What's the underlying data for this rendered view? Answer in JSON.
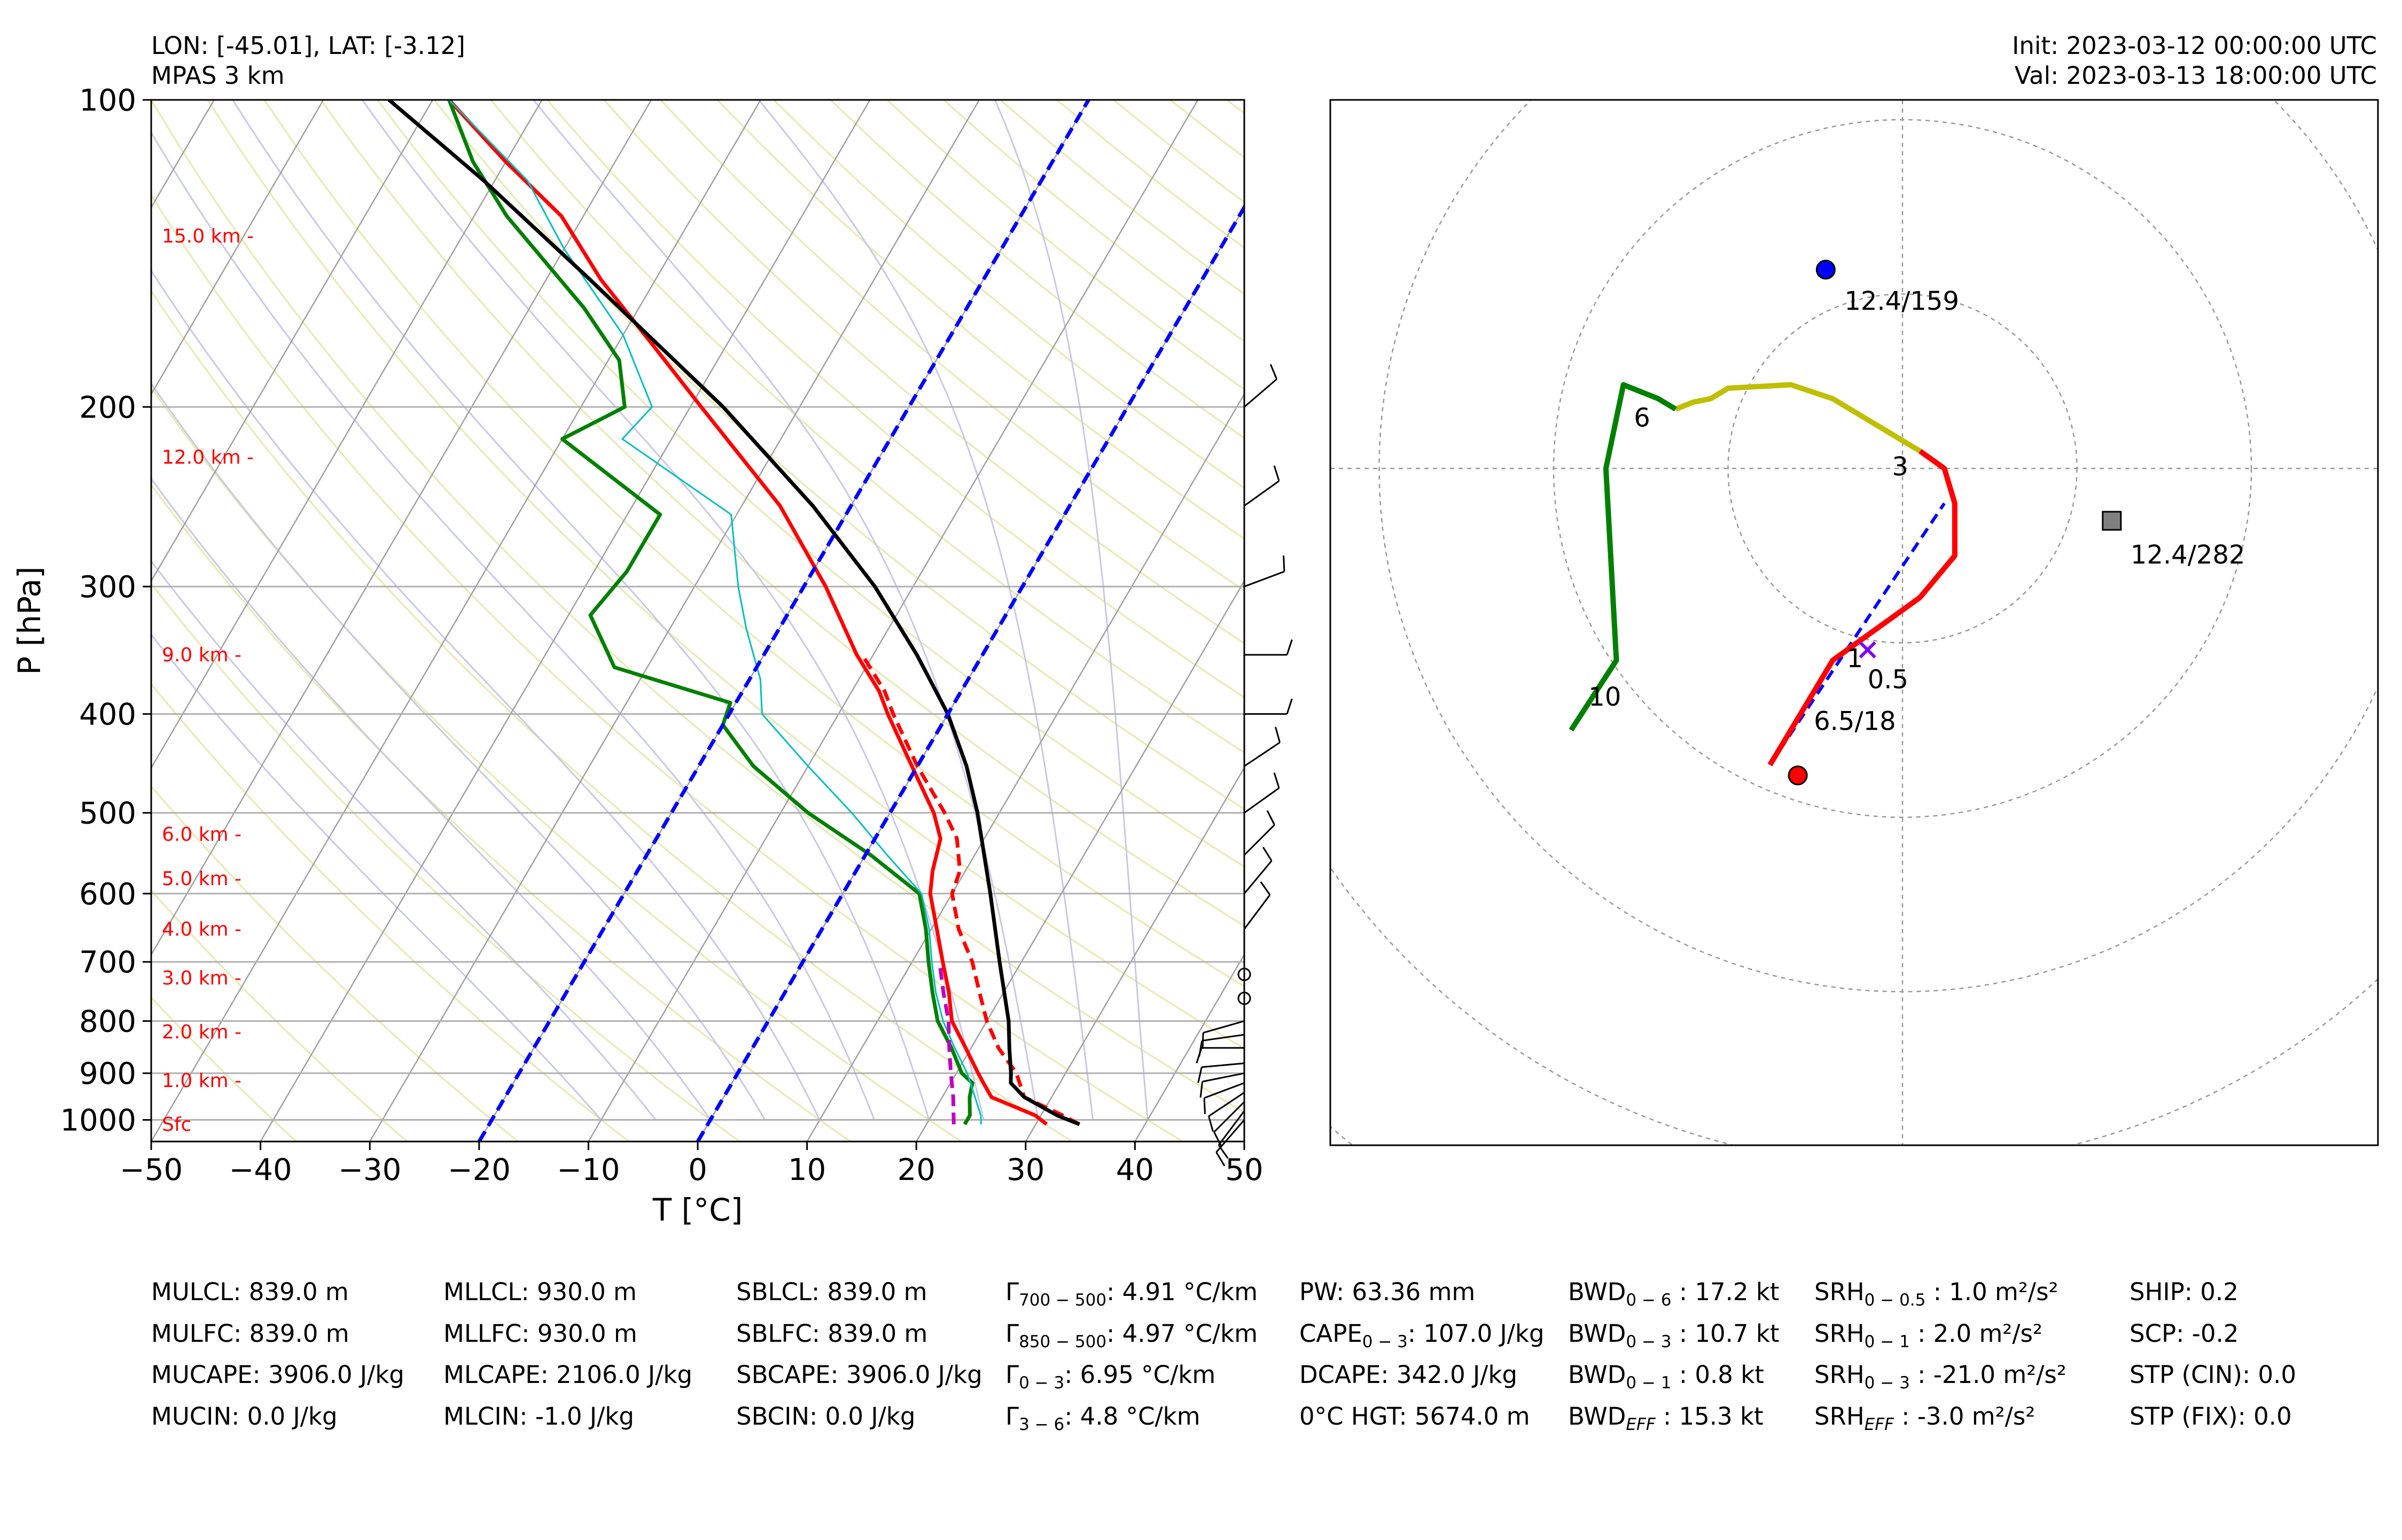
{
  "header": {
    "location": "LON: [-45.01], LAT: [-3.12]",
    "model": "MPAS 3 km",
    "init": "Init: 2023-03-12 00:00:00 UTC",
    "valid": "Val: 2023-03-13 18:00:00 UTC"
  },
  "chart_data": [
    {
      "type": "line",
      "kind": "skew-t log-p diagram",
      "xlabel": "T [°C]",
      "ylabel": "P [hPa]",
      "xlim": [
        -50,
        50
      ],
      "ylim": [
        1050,
        100
      ],
      "y_scale": "log",
      "x_ticks": [
        -50,
        -40,
        -30,
        -20,
        -10,
        0,
        10,
        20,
        30,
        40,
        50
      ],
      "y_ticks": [
        100,
        200,
        300,
        400,
        500,
        600,
        700,
        800,
        900,
        1000
      ],
      "grid": true,
      "height_labels": [
        {
          "text": "15.0 km -",
          "p": 136
        },
        {
          "text": "12.0 km -",
          "p": 224
        },
        {
          "text": "9.0 km -",
          "p": 350
        },
        {
          "text": "6.0 km -",
          "p": 525
        },
        {
          "text": "5.0 km -",
          "p": 580
        },
        {
          "text": "4.0 km -",
          "p": 650
        },
        {
          "text": "3.0 km -",
          "p": 726
        },
        {
          "text": "2.0 km -",
          "p": 820
        },
        {
          "text": "1.0 km -",
          "p": 915
        },
        {
          "text": "Sfc",
          "p": 1010
        }
      ],
      "series": [
        {
          "role": "temperature",
          "color": "#ff0000",
          "style": "solid",
          "points": [
            [
              1010,
              31.0
            ],
            [
              990,
              29.5
            ],
            [
              950,
              24.5
            ],
            [
              920,
              23.0
            ],
            [
              900,
              22.0
            ],
            [
              850,
              19.5
            ],
            [
              800,
              16.8
            ],
            [
              750,
              15.0
            ],
            [
              700,
              12.8
            ],
            [
              650,
              10.5
            ],
            [
              600,
              8.0
            ],
            [
              570,
              7.0
            ],
            [
              530,
              6.0
            ],
            [
              500,
              4.0
            ],
            [
              450,
              -0.5
            ],
            [
              400,
              -5.5
            ],
            [
              380,
              -7.5
            ],
            [
              350,
              -11.5
            ],
            [
              300,
              -18.0
            ],
            [
              250,
              -26.5
            ],
            [
              200,
              -39.0
            ],
            [
              170,
              -48.0
            ],
            [
              150,
              -55.0
            ],
            [
              130,
              -62.0
            ],
            [
              115,
              -70.0
            ],
            [
              100,
              -78.5
            ]
          ]
        },
        {
          "role": "dewpoint",
          "color": "#008000",
          "style": "solid",
          "points": [
            [
              1010,
              23.5
            ],
            [
              990,
              23.5
            ],
            [
              950,
              22.5
            ],
            [
              920,
              22.0
            ],
            [
              900,
              20.5
            ],
            [
              850,
              18.2
            ],
            [
              800,
              15.5
            ],
            [
              750,
              13.5
            ],
            [
              700,
              11.5
            ],
            [
              650,
              9.5
            ],
            [
              600,
              7.0
            ],
            [
              550,
              0.5
            ],
            [
              500,
              -7.5
            ],
            [
              450,
              -15.0
            ],
            [
              410,
              -20.0
            ],
            [
              390,
              -20.5
            ],
            [
              360,
              -33.0
            ],
            [
              320,
              -38.0
            ],
            [
              290,
              -37.0
            ],
            [
              255,
              -37.0
            ],
            [
              215,
              -50.0
            ],
            [
              200,
              -46.0
            ],
            [
              180,
              -49.0
            ],
            [
              160,
              -55.0
            ],
            [
              130,
              -67.0
            ],
            [
              115,
              -73.0
            ],
            [
              100,
              -78.5
            ]
          ]
        },
        {
          "role": "wet-bulb",
          "color": "#00bfbf",
          "style": "solid",
          "points": [
            [
              1010,
              25.0
            ],
            [
              990,
              24.5
            ],
            [
              950,
              23.0
            ],
            [
              900,
              21.0
            ],
            [
              850,
              18.5
            ],
            [
              800,
              16.0
            ],
            [
              750,
              13.8
            ],
            [
              700,
              11.8
            ],
            [
              650,
              9.8
            ],
            [
              600,
              7.2
            ],
            [
              550,
              2.0
            ],
            [
              500,
              -3.5
            ],
            [
              450,
              -10.0
            ],
            [
              400,
              -17.0
            ],
            [
              370,
              -19.0
            ],
            [
              330,
              -23.0
            ],
            [
              300,
              -26.0
            ],
            [
              255,
              -30.5
            ],
            [
              215,
              -44.5
            ],
            [
              200,
              -43.5
            ],
            [
              170,
              -50.0
            ],
            [
              140,
              -60.0
            ],
            [
              120,
              -67.0
            ],
            [
              100,
              -78.5
            ]
          ]
        },
        {
          "role": "virtual-temperature",
          "color": "#ff0000",
          "style": "dashed",
          "points": [
            [
              1010,
              34.0
            ],
            [
              990,
              32.0
            ],
            [
              950,
              27.5
            ],
            [
              900,
              25.5
            ],
            [
              850,
              22.5
            ],
            [
              800,
              20.0
            ],
            [
              750,
              17.8
            ],
            [
              700,
              15.5
            ],
            [
              650,
              12.5
            ],
            [
              600,
              10.0
            ],
            [
              570,
              9.5
            ],
            [
              530,
              7.5
            ],
            [
              500,
              5.0
            ],
            [
              450,
              0.0
            ],
            [
              400,
              -5.0
            ],
            [
              380,
              -7.0
            ],
            [
              350,
              -11.0
            ]
          ]
        },
        {
          "role": "parcel-path",
          "color": "#000000",
          "style": "solid",
          "points": [
            [
              1010,
              34.0
            ],
            [
              990,
              31.5
            ],
            [
              950,
              27.5
            ],
            [
              920,
              25.5
            ],
            [
              900,
              25.0
            ],
            [
              850,
              23.5
            ],
            [
              800,
              22.0
            ],
            [
              700,
              18.0
            ],
            [
              600,
              13.5
            ],
            [
              500,
              8.0
            ],
            [
              450,
              4.5
            ],
            [
              400,
              0.0
            ],
            [
              350,
              -6.0
            ],
            [
              300,
              -13.5
            ],
            [
              250,
              -23.5
            ],
            [
              200,
              -37.0
            ],
            [
              150,
              -56.0
            ],
            [
              120,
              -71.0
            ],
            [
              100,
              -84.0
            ]
          ]
        },
        {
          "role": "downdraft-parcel",
          "color": "#c000c0",
          "style": "dashed",
          "points": [
            [
              1010,
              22.5
            ],
            [
              950,
              21.0
            ],
            [
              900,
              19.5
            ],
            [
              850,
              18.0
            ],
            [
              800,
              16.5
            ],
            [
              750,
              14.5
            ],
            [
              700,
              12.5
            ]
          ]
        },
        {
          "role": "isotherm-0C",
          "color": "#0000ff",
          "style": "dashed",
          "points": [
            [
              1050,
              0.0
            ],
            [
              100,
              0.0
            ]
          ]
        },
        {
          "role": "isotherm-minus20C",
          "color": "#0000ff",
          "style": "dashed",
          "points": [
            [
              1050,
              -20.0
            ],
            [
              100,
              -20.0
            ]
          ]
        }
      ],
      "wind_barbs_kt": [
        {
          "p": 1000,
          "u": 1.3,
          "v": 1.5
        },
        {
          "p": 980,
          "u": 1.5,
          "v": 2.0
        },
        {
          "p": 960,
          "u": 2.0,
          "v": 2.0
        },
        {
          "p": 940,
          "u": 3.0,
          "v": 2.0
        },
        {
          "p": 920,
          "u": 4.0,
          "v": 1.5
        },
        {
          "p": 900,
          "u": 5.0,
          "v": 1.0
        },
        {
          "p": 880,
          "u": 5.5,
          "v": 0.5
        },
        {
          "p": 850,
          "u": 6.0,
          "v": 0.0
        },
        {
          "p": 825,
          "u": 7.0,
          "v": 1.0
        },
        {
          "p": 800,
          "u": 7.0,
          "v": 2.0
        },
        {
          "p": 760,
          "u": 0.0,
          "v": 0.0
        },
        {
          "p": 720,
          "u": 0.0,
          "v": 0.0
        },
        {
          "p": 650,
          "u": -3.0,
          "v": -4.0
        },
        {
          "p": 600,
          "u": -5.0,
          "v": -6.0
        },
        {
          "p": 550,
          "u": -5.0,
          "v": -5.0
        },
        {
          "p": 500,
          "u": -7.0,
          "v": -5.0
        },
        {
          "p": 450,
          "u": -6.0,
          "v": -4.0
        },
        {
          "p": 400,
          "u": -8.0,
          "v": 0.0
        },
        {
          "p": 350,
          "u": -8.0,
          "v": 0.0
        },
        {
          "p": 300,
          "u": -8.0,
          "v": -3.0
        },
        {
          "p": 250,
          "u": -7.0,
          "v": -5.0
        },
        {
          "p": 200,
          "u": -7.0,
          "v": -6.0
        }
      ]
    },
    {
      "type": "line",
      "kind": "hodograph",
      "range_kt": [
        -30,
        30
      ],
      "ring_interval_kt": 5,
      "grid": true,
      "segments": [
        {
          "layer": "0-3 km",
          "color": "#ff0000",
          "points": [
            [
              -3.8,
              -8.5
            ],
            [
              -2.0,
              -5.5
            ],
            [
              0.5,
              -3.7
            ],
            [
              1.5,
              -2.5
            ],
            [
              1.5,
              -1.0
            ],
            [
              1.2,
              0.0
            ],
            [
              0.5,
              0.5
            ]
          ]
        },
        {
          "layer": "3-6 km",
          "color": "#bfbf00",
          "points": [
            [
              0.5,
              0.5
            ],
            [
              -2.0,
              2.0
            ],
            [
              -3.2,
              2.4
            ],
            [
              -5.0,
              2.3
            ],
            [
              -5.5,
              2.0
            ],
            [
              -6.0,
              1.9
            ],
            [
              -6.5,
              1.7
            ]
          ]
        },
        {
          "layer": "6-10 km",
          "color": "#008000",
          "points": [
            [
              -6.5,
              1.7
            ],
            [
              -7.0,
              2.0
            ],
            [
              -8.0,
              2.4
            ],
            [
              -8.5,
              0.0
            ],
            [
              -8.2,
              -5.5
            ],
            [
              -9.5,
              -7.5
            ]
          ]
        }
      ],
      "labels": [
        {
          "text": "6",
          "u": -7.7,
          "v": 1.2
        },
        {
          "text": "3",
          "u": -0.3,
          "v": -0.2
        },
        {
          "text": "0.5",
          "u": -1.0,
          "v": -6.3
        },
        {
          "text": "1",
          "u": -1.6,
          "v": -5.7
        },
        {
          "text": "10",
          "u": -9.0,
          "v": -6.8
        }
      ],
      "markers": [
        {
          "role": "left-mover",
          "shape": "circle",
          "color": "#0000ff",
          "u": -2.2,
          "v": 5.7,
          "label": "12.4/159"
        },
        {
          "role": "right-mover",
          "shape": "square",
          "color": "#808080",
          "u": 6.0,
          "v": -1.5,
          "label": "12.4/282"
        },
        {
          "role": "mean-wind",
          "shape": "circle",
          "color": "#ff0000",
          "u": -3.0,
          "v": -8.8,
          "label": "6.5/18"
        },
        {
          "role": "effective-inflow",
          "shape": "x",
          "color": "#8000ff",
          "u": -1.0,
          "v": -5.2,
          "label": ""
        }
      ],
      "shear_vector": {
        "color": "#0000ff",
        "style": "dashed",
        "from": [
          -3.8,
          -8.5
        ],
        "to": [
          1.2,
          -1.0
        ]
      }
    }
  ],
  "indices": {
    "col1": [
      "MULCL: 839.0 m",
      "MULFC: 839.0 m",
      "MUCAPE: 3906.0 J/kg",
      "MUCIN: 0.0 J/kg"
    ],
    "col2": [
      "MLLCL: 930.0 m",
      "MLLFC: 930.0 m",
      "MLCAPE: 2106.0 J/kg",
      "MLCIN: -1.0 J/kg"
    ],
    "col3": [
      "SBLCL: 839.0 m",
      "SBLFC: 839.0 m",
      "SBCAPE: 3906.0 J/kg",
      "SBCIN: 0.0 J/kg"
    ],
    "col4": [
      {
        "sym": "Γ",
        "sub": "700 − 500",
        "rest": ": 4.91 °C/km"
      },
      {
        "sym": "Γ",
        "sub": "850 − 500",
        "rest": ": 4.97 °C/km"
      },
      {
        "sym": "Γ",
        "sub": "0 − 3",
        "rest": ": 6.95 °C/km"
      },
      {
        "sym": "Γ",
        "sub": "3 − 6",
        "rest": ": 4.8 °C/km"
      }
    ],
    "col5": [
      {
        "sym": "PW: 63.36 mm",
        "sub": "",
        "rest": ""
      },
      {
        "sym": "CAPE",
        "sub": "0 − 3",
        "rest": ": 107.0 J/kg"
      },
      {
        "sym": "DCAPE: 342.0 J/kg",
        "sub": "",
        "rest": ""
      },
      {
        "sym": "0°C HGT: 5674.0 m",
        "sub": "",
        "rest": ""
      }
    ],
    "col6": [
      {
        "sym": "BWD",
        "sub": "0 − 6",
        "rest": " : 17.2 kt"
      },
      {
        "sym": "BWD",
        "sub": "0 − 3",
        "rest": " : 10.7 kt"
      },
      {
        "sym": "BWD",
        "sub": "0 − 1",
        "rest": " : 0.8 kt"
      },
      {
        "sym": "BWD",
        "sub": "EFF",
        "rest": " : 15.3 kt"
      }
    ],
    "col7": [
      {
        "sym": "SRH",
        "sub": "0 − 0.5",
        "rest": " : 1.0 m²/s²"
      },
      {
        "sym": "SRH",
        "sub": "0 − 1",
        "rest": " : 2.0 m²/s²"
      },
      {
        "sym": "SRH",
        "sub": "0 − 3",
        "rest": " : -21.0 m²/s²"
      },
      {
        "sym": "SRH",
        "sub": "EFF",
        "rest": " : -3.0 m²/s²"
      }
    ],
    "col8": [
      "SHIP: 0.2",
      "SCP: -0.2",
      "STP (CIN): 0.0",
      "STP (FIX): 0.0"
    ]
  }
}
